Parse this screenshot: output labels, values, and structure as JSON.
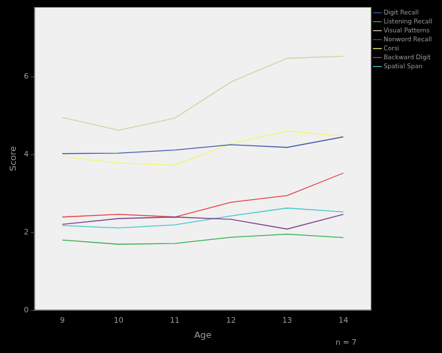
{
  "chart_data": {
    "type": "line",
    "x_label": "Age",
    "y_label": "Score",
    "annotation": "n = 7",
    "categories": [
      "9",
      "10",
      "11",
      "12",
      "13",
      "14"
    ],
    "series": [
      {
        "name": "Digit Recall",
        "color": "#3e58ac",
        "values": [
          4.03,
          4.04,
          4.12,
          4.26,
          4.19,
          4.46
        ]
      },
      {
        "name": "Listening Recall",
        "color": "#2fb04a",
        "values": [
          1.81,
          1.7,
          1.72,
          1.88,
          1.96,
          1.87
        ]
      },
      {
        "name": "Visual Patterns",
        "color": "#d4cf9f",
        "values": [
          4.96,
          4.63,
          4.94,
          5.87,
          6.48,
          6.53
        ]
      },
      {
        "name": "Nonword Recall",
        "color": "#7a3a8a",
        "values": [
          2.21,
          2.36,
          2.4,
          2.34,
          2.09,
          2.47
        ]
      },
      {
        "name": "Corsi",
        "color": "#f5f56c",
        "values": [
          3.95,
          3.79,
          3.73,
          4.28,
          4.61,
          4.48
        ]
      },
      {
        "name": "Backward Digit",
        "color": "#e8383d",
        "values": [
          2.4,
          2.47,
          2.4,
          2.78,
          2.95,
          3.53
        ]
      },
      {
        "name": "Spatial Span",
        "color": "#40c8c8",
        "values": [
          2.18,
          2.12,
          2.2,
          2.43,
          2.63,
          2.53
        ]
      }
    ],
    "ylim": [
      0,
      7.8
    ],
    "yticks": [
      0,
      2,
      4,
      6
    ],
    "grid": false,
    "legend": "right"
  }
}
